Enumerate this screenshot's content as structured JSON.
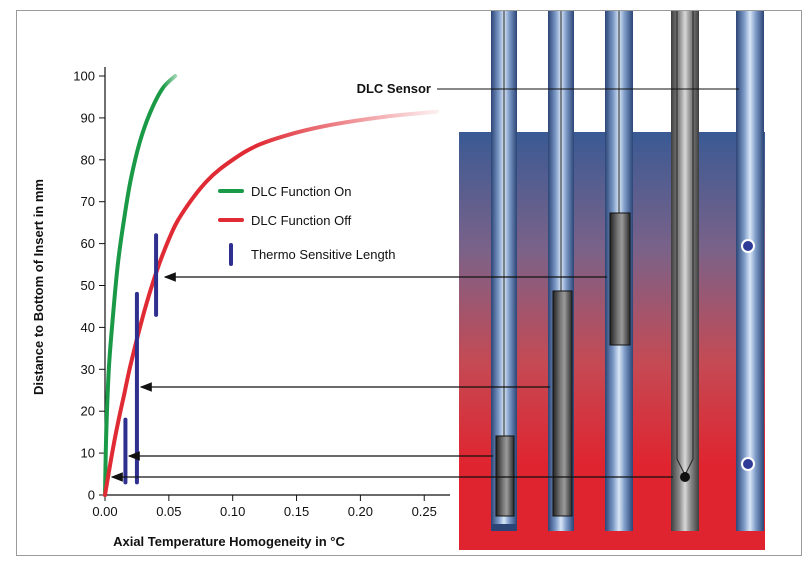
{
  "chart_data": {
    "type": "line",
    "title": "",
    "xlabel": "Axial Temperature Homogeneity in °C",
    "ylabel": "Distance to Bottom of Insert in mm",
    "xlim": [
      0,
      0.27
    ],
    "ylim": [
      0,
      105
    ],
    "x_ticks": [
      "0.00",
      "0.05",
      "0.10",
      "0.15",
      "0.20",
      "0.25"
    ],
    "y_ticks": [
      "0",
      "10",
      "20",
      "30",
      "40",
      "50",
      "60",
      "70",
      "80",
      "90",
      "100"
    ],
    "grid": false,
    "legend_position": "center-right",
    "series": [
      {
        "name": "DLC Function On",
        "color": "#1a9a47",
        "x": [
          0,
          0.001,
          0.003,
          0.006,
          0.01,
          0.015,
          0.02,
          0.027,
          0.035,
          0.045,
          0.055
        ],
        "y": [
          0,
          15,
          30,
          42,
          55,
          66,
          75,
          84,
          91,
          97,
          100
        ]
      },
      {
        "name": "DLC Function Off",
        "color": "#e02b35",
        "x": [
          0,
          0.005,
          0.01,
          0.015,
          0.02,
          0.03,
          0.04,
          0.05,
          0.06,
          0.08,
          0.1,
          0.12,
          0.15,
          0.18,
          0.22,
          0.26
        ],
        "y": [
          0,
          9,
          17,
          24,
          31,
          43,
          53,
          61,
          67,
          75,
          80,
          83.5,
          86.5,
          88.5,
          90.3,
          91.5
        ]
      }
    ],
    "thermo_sensitive_length": {
      "name": "Thermo Sensitive Length",
      "color": "#2e2f8e",
      "segments": [
        {
          "x": 0.016,
          "y_from": 3,
          "y_to": 18
        },
        {
          "x": 0.025,
          "y_from": 3,
          "y_to": 48
        },
        {
          "x": 0.04,
          "y_from": 43,
          "y_to": 62
        }
      ]
    },
    "annotations": [
      "DLC Sensor"
    ]
  }
}
